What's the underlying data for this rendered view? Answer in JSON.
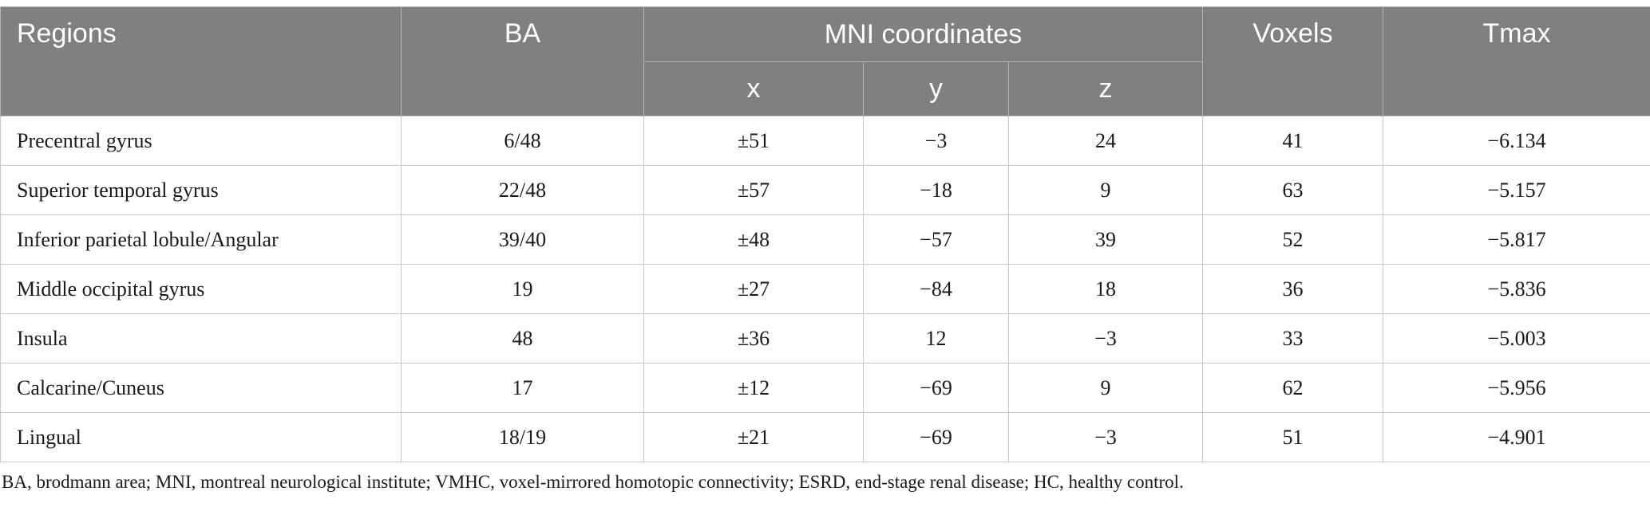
{
  "headers": {
    "regions": "Regions",
    "ba": "BA",
    "mni": "MNI coordinates",
    "x": "x",
    "y": "y",
    "z": "z",
    "voxels": "Voxels",
    "tmax": "Tmax"
  },
  "rows": [
    {
      "region": "Precentral gyrus",
      "ba": "6/48",
      "x": "±51",
      "y": "−3",
      "z": "24",
      "voxels": "41",
      "tmax": "−6.134"
    },
    {
      "region": "Superior temporal gyrus",
      "ba": "22/48",
      "x": "±57",
      "y": "−18",
      "z": "9",
      "voxels": "63",
      "tmax": "−5.157"
    },
    {
      "region": "Inferior parietal lobule/Angular",
      "ba": "39/40",
      "x": "±48",
      "y": "−57",
      "z": "39",
      "voxels": "52",
      "tmax": "−5.817"
    },
    {
      "region": "Middle occipital gyrus",
      "ba": "19",
      "x": "±27",
      "y": "−84",
      "z": "18",
      "voxels": "36",
      "tmax": "−5.836"
    },
    {
      "region": "Insula",
      "ba": "48",
      "x": "±36",
      "y": "12",
      "z": "−3",
      "voxels": "33",
      "tmax": "−5.003"
    },
    {
      "region": "Calcarine/Cuneus",
      "ba": "17",
      "x": "±12",
      "y": "−69",
      "z": "9",
      "voxels": "62",
      "tmax": "−5.956"
    },
    {
      "region": "Lingual",
      "ba": "18/19",
      "x": "±21",
      "y": "−69",
      "z": "−3",
      "voxels": "51",
      "tmax": "−4.901"
    }
  ],
  "footnote": "BA, brodmann area; MNI, montreal neurological institute; VMHC, voxel-mirrored homotopic connectivity; ESRD, end-stage renal disease; HC, healthy control."
}
